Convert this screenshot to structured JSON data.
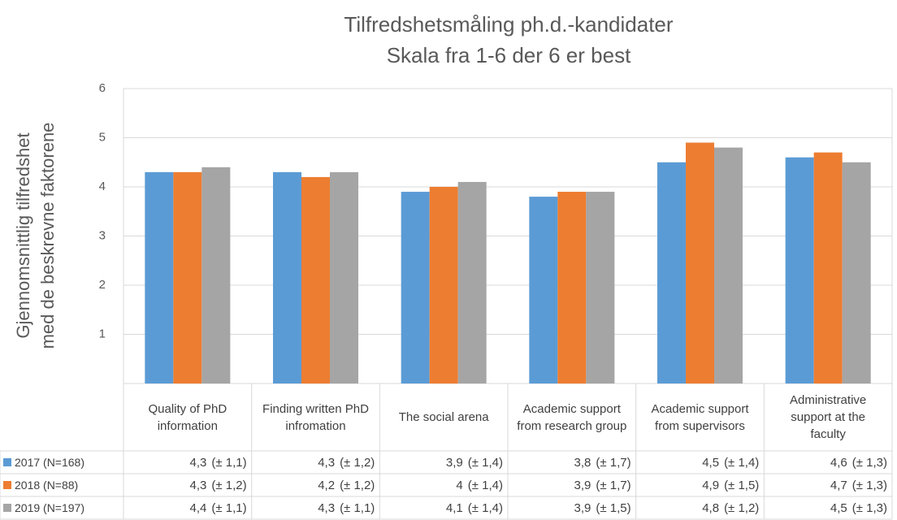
{
  "chart_data": {
    "type": "bar",
    "title": [
      "Tilfredshetsmåling ph.d.-kandidater",
      "Skala fra 1-6 der 6 er best"
    ],
    "y_label": [
      "Gjennomsnittlig tilfredshet",
      "med de beskrevne faktorene"
    ],
    "categories": [
      "Quality of PhD information",
      "Finding written PhD infromation",
      "The social arena",
      "Academic support from research group",
      "Academic support from supervisors",
      "Administrative support at the faculty"
    ],
    "series": [
      {
        "name": "2017 (N=168)",
        "color": "#5b9bd5",
        "values": [
          4.3,
          4.3,
          3.9,
          3.8,
          4.5,
          4.6
        ],
        "value_labels": [
          "4,3",
          "4,3",
          "3,9",
          "3,8",
          "4,5",
          "4,6"
        ],
        "error_labels": [
          "(± 1,1)",
          "(± 1,2)",
          "(± 1,4)",
          "(± 1,7)",
          "(± 1,4)",
          "(± 1,3)"
        ]
      },
      {
        "name": "2018 (N=88)",
        "color": "#ed7d31",
        "values": [
          4.3,
          4.2,
          4.0,
          3.9,
          4.9,
          4.7
        ],
        "value_labels": [
          "4,3",
          "4,2",
          "4",
          "3,9",
          "4,9",
          "4,7"
        ],
        "error_labels": [
          "(± 1,2)",
          "(± 1,2)",
          "(± 1,4)",
          "(± 1,7)",
          "(± 1,5)",
          "(± 1,3)"
        ]
      },
      {
        "name": "2019 (N=197)",
        "color": "#a5a5a5",
        "values": [
          4.4,
          4.3,
          4.1,
          3.9,
          4.8,
          4.5
        ],
        "value_labels": [
          "4,4",
          "4,3",
          "4,1",
          "3,9",
          "4,8",
          "4,5"
        ],
        "error_labels": [
          "(± 1,1)",
          "(± 1,1)",
          "(± 1,4)",
          "(± 1,5)",
          "(± 1,2)",
          "(± 1,3)"
        ]
      }
    ],
    "ylim": [
      0,
      6
    ],
    "yticks": [
      1,
      2,
      3,
      4,
      5,
      6
    ],
    "grid": true
  }
}
